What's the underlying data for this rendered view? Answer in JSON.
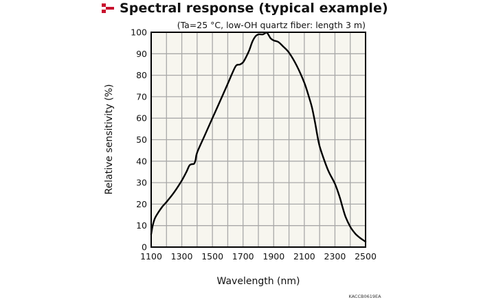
{
  "header": {
    "title": "Spectral response (typical example)",
    "icon": "red-checker-bullet-icon",
    "accent_color": "#c8102e"
  },
  "chart_data": {
    "type": "line",
    "title": "Spectral response (typical example)",
    "subtitle": "(Ta=25 °C, low-OH quartz fiber: length 3 m)",
    "xlabel": "Wavelength (nm)",
    "ylabel": "Relative sensitivity (%)",
    "xlim": [
      1100,
      2500
    ],
    "ylim": [
      0,
      100
    ],
    "xticks": [
      1100,
      1300,
      1500,
      1700,
      1900,
      2100,
      2300,
      2500
    ],
    "yticks": [
      0,
      10,
      20,
      30,
      40,
      50,
      60,
      70,
      80,
      90,
      100
    ],
    "x_grid_step": 100,
    "y_grid_step": 10,
    "grid": true,
    "plot_background": "#f7f6ef",
    "grid_color": "#a8a8a8",
    "line_color": "#000000",
    "figure_code": "KACCB0619EA",
    "series": [
      {
        "name": "Relative sensitivity",
        "points": [
          [
            1100,
            6
          ],
          [
            1110,
            10
          ],
          [
            1125,
            13.5
          ],
          [
            1150,
            16.5
          ],
          [
            1175,
            19
          ],
          [
            1200,
            21
          ],
          [
            1250,
            25.5
          ],
          [
            1300,
            31
          ],
          [
            1330,
            35
          ],
          [
            1350,
            38
          ],
          [
            1365,
            38.6
          ],
          [
            1380,
            38.8
          ],
          [
            1390,
            40.5
          ],
          [
            1400,
            44
          ],
          [
            1450,
            52
          ],
          [
            1500,
            60
          ],
          [
            1550,
            68
          ],
          [
            1600,
            76
          ],
          [
            1630,
            81
          ],
          [
            1655,
            84.5
          ],
          [
            1680,
            85
          ],
          [
            1700,
            86
          ],
          [
            1720,
            88.5
          ],
          [
            1740,
            91.5
          ],
          [
            1760,
            95.5
          ],
          [
            1780,
            98
          ],
          [
            1800,
            99
          ],
          [
            1830,
            99
          ],
          [
            1850,
            99.8
          ],
          [
            1860,
            99.5
          ],
          [
            1880,
            97.2
          ],
          [
            1900,
            96.2
          ],
          [
            1930,
            95.5
          ],
          [
            1960,
            93.5
          ],
          [
            2000,
            90.5
          ],
          [
            2050,
            84.5
          ],
          [
            2100,
            76.5
          ],
          [
            2130,
            70
          ],
          [
            2150,
            65
          ],
          [
            2170,
            58
          ],
          [
            2185,
            52
          ],
          [
            2200,
            47
          ],
          [
            2230,
            40.5
          ],
          [
            2260,
            35
          ],
          [
            2300,
            29.5
          ],
          [
            2330,
            23.5
          ],
          [
            2350,
            18.5
          ],
          [
            2370,
            14
          ],
          [
            2400,
            9.5
          ],
          [
            2430,
            6.5
          ],
          [
            2460,
            4.5
          ],
          [
            2500,
            2.5
          ]
        ]
      }
    ]
  }
}
